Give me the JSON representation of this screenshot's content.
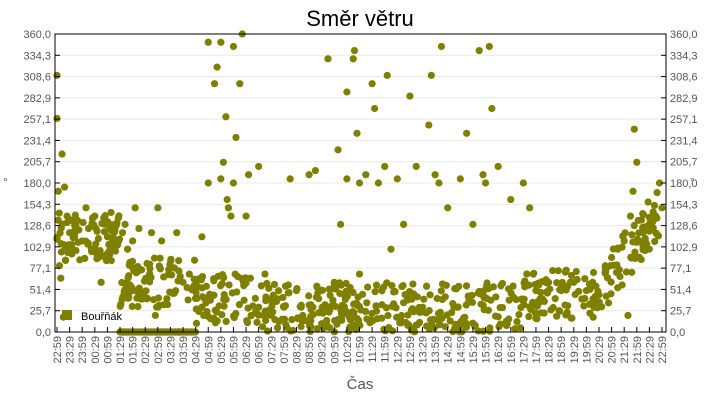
{
  "chart_data": {
    "type": "scatter",
    "title": "Směr větru",
    "xlabel": "Čas",
    "ylabel": "°",
    "ylim": [
      0,
      360
    ],
    "yticks": [
      "0,0",
      "25,7",
      "51,4",
      "77,1",
      "102,9",
      "128,6",
      "154,3",
      "180,0",
      "205,7",
      "231,4",
      "257,1",
      "282,9",
      "308,6",
      "334,3",
      "360,0"
    ],
    "xticks": [
      "22:59",
      "23:29",
      "23:59",
      "00:29",
      "00:59",
      "01:29",
      "01:59",
      "02:29",
      "02:59",
      "03:29",
      "03:59",
      "04:29",
      "04:59",
      "05:29",
      "05:59",
      "06:29",
      "06:59",
      "07:29",
      "07:59",
      "08:29",
      "08:59",
      "09:29",
      "09:59",
      "10:29",
      "10:59",
      "11:29",
      "11:59",
      "12:29",
      "12:59",
      "13:29",
      "13:59",
      "14:29",
      "14:59",
      "15:29",
      "15:59",
      "16:29",
      "16:59",
      "17:29",
      "17:59",
      "18:29",
      "18:59",
      "19:29",
      "19:59",
      "20:29",
      "20:59",
      "21:29",
      "21:59",
      "22:29",
      "22:59"
    ],
    "grid": true,
    "legend": {
      "position": "bottom-left-inside",
      "entries": [
        "Bouřňák"
      ]
    },
    "series": [
      {
        "name": "Bouřňák",
        "color": "#808000",
        "points_note": "approximate [x_tick_index, degrees] samples",
        "points": [
          [
            0,
            310
          ],
          [
            0,
            258
          ],
          [
            0.1,
            170
          ],
          [
            0.2,
            80
          ],
          [
            0.3,
            65
          ],
          [
            0.5,
            18
          ],
          [
            0.4,
            215
          ],
          [
            0.6,
            175
          ],
          [
            0.8,
            140
          ],
          [
            1,
            120
          ],
          [
            1.2,
            100
          ],
          [
            1.5,
            130
          ],
          [
            2,
            110
          ],
          [
            2.3,
            150
          ],
          [
            2.5,
            125
          ],
          [
            3,
            140
          ],
          [
            3,
            100
          ],
          [
            3.3,
            90
          ],
          [
            3.5,
            60
          ],
          [
            3.8,
            130
          ],
          [
            4,
            115
          ],
          [
            4.2,
            125
          ],
          [
            4.5,
            110
          ],
          [
            4.8,
            105
          ],
          [
            5,
            0
          ],
          [
            5.2,
            120
          ],
          [
            5.4,
            130
          ],
          [
            5.6,
            100
          ],
          [
            5.8,
            55
          ],
          [
            6,
            110
          ],
          [
            6.2,
            150
          ],
          [
            6.5,
            125
          ],
          [
            6.8,
            40
          ],
          [
            7,
            0
          ],
          [
            7.5,
            120
          ],
          [
            7.8,
            20
          ],
          [
            8,
            150
          ],
          [
            8.3,
            110
          ],
          [
            9,
            0
          ],
          [
            9.5,
            120
          ],
          [
            10,
            60
          ],
          [
            10.5,
            70
          ],
          [
            11,
            55
          ],
          [
            11.5,
            115
          ],
          [
            11.5,
            30
          ],
          [
            12,
            180
          ],
          [
            12,
            350
          ],
          [
            12.5,
            300
          ],
          [
            12.7,
            320
          ],
          [
            13,
            350
          ],
          [
            13,
            185
          ],
          [
            13.2,
            205
          ],
          [
            13.4,
            260
          ],
          [
            13.5,
            160
          ],
          [
            13.6,
            150
          ],
          [
            13.8,
            140
          ],
          [
            14,
            345
          ],
          [
            14,
            180
          ],
          [
            14.2,
            235
          ],
          [
            14.5,
            300
          ],
          [
            14.7,
            360
          ],
          [
            14.8,
            60
          ],
          [
            15,
            140
          ],
          [
            15.2,
            190
          ],
          [
            15.4,
            20
          ],
          [
            16,
            30
          ],
          [
            16,
            200
          ],
          [
            16.5,
            70
          ],
          [
            17,
            20
          ],
          [
            17.5,
            40
          ],
          [
            18,
            30
          ],
          [
            18.5,
            185
          ],
          [
            19,
            50
          ],
          [
            19.5,
            20
          ],
          [
            20,
            190
          ],
          [
            20.3,
            30
          ],
          [
            20.5,
            195
          ],
          [
            21,
            10
          ],
          [
            21.5,
            330
          ],
          [
            22,
            60
          ],
          [
            22.3,
            220
          ],
          [
            22.5,
            130
          ],
          [
            23,
            185
          ],
          [
            23,
            290
          ],
          [
            23.5,
            330
          ],
          [
            23.6,
            340
          ],
          [
            23.8,
            240
          ],
          [
            24,
            180
          ],
          [
            24,
            70
          ],
          [
            24.5,
            190
          ],
          [
            25,
            300
          ],
          [
            25.2,
            270
          ],
          [
            25.5,
            180
          ],
          [
            26,
            200
          ],
          [
            26.2,
            310
          ],
          [
            26.5,
            100
          ],
          [
            27,
            185
          ],
          [
            27.5,
            130
          ],
          [
            28,
            285
          ],
          [
            28.5,
            200
          ],
          [
            29,
            30
          ],
          [
            29.5,
            250
          ],
          [
            29.7,
            310
          ],
          [
            30,
            190
          ],
          [
            30.3,
            180
          ],
          [
            30.5,
            345
          ],
          [
            31,
            150
          ],
          [
            31.5,
            30
          ],
          [
            32,
            185
          ],
          [
            32.5,
            240
          ],
          [
            33,
            130
          ],
          [
            33.5,
            340
          ],
          [
            33.8,
            190
          ],
          [
            34,
            180
          ],
          [
            34.3,
            345
          ],
          [
            34.5,
            270
          ],
          [
            35,
            200
          ],
          [
            36,
            160
          ],
          [
            37,
            180
          ],
          [
            37.5,
            150
          ],
          [
            38,
            50
          ],
          [
            38.5,
            40
          ],
          [
            39,
            60
          ],
          [
            40,
            50
          ],
          [
            40.5,
            55
          ],
          [
            41,
            60
          ],
          [
            42,
            50
          ],
          [
            42.5,
            60
          ],
          [
            43,
            45
          ],
          [
            43.5,
            80
          ],
          [
            44,
            90
          ],
          [
            44.5,
            100
          ],
          [
            45,
            110
          ],
          [
            45.3,
            20
          ],
          [
            45.5,
            140
          ],
          [
            45.7,
            170
          ],
          [
            45.8,
            245
          ],
          [
            46,
            205
          ],
          [
            46.5,
            120
          ],
          [
            47,
            130
          ],
          [
            47.5,
            140
          ],
          [
            47.8,
            180
          ],
          [
            48,
            150
          ]
        ]
      }
    ]
  },
  "legend": {
    "label": "Bouřňák"
  },
  "axis": {
    "left_unit": "°",
    "right_unit": "°"
  }
}
